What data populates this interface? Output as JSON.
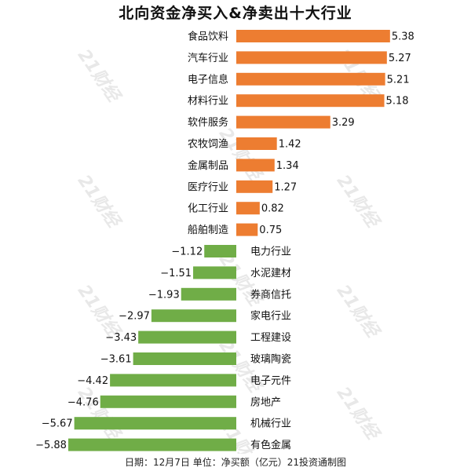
{
  "title": "北向资金净买入&净卖出十大行业",
  "footer": "日期：12月7日 单位：净买额（亿元）21投资通制图",
  "watermark": "21财经",
  "colors": {
    "buy": "#ed7d31",
    "sell": "#70ad47"
  },
  "chart_data": {
    "type": "bar",
    "orientation": "horizontal",
    "title": "北向资金净买入&净卖出十大行业",
    "xlabel": "",
    "ylabel": "",
    "xlim": [
      -5.88,
      5.38
    ],
    "grid": false,
    "legend": "none",
    "categories": [
      "食品饮料",
      "汽车行业",
      "电子信息",
      "材料行业",
      "软件服务",
      "农牧饲渔",
      "金属制品",
      "医疗行业",
      "化工行业",
      "船舶制造",
      "电力行业",
      "水泥建材",
      "券商信托",
      "家电行业",
      "工程建设",
      "玻璃陶瓷",
      "电子元件",
      "房地产",
      "机械行业",
      "有色金属"
    ],
    "values": [
      5.38,
      5.27,
      5.21,
      5.18,
      3.29,
      1.42,
      1.34,
      1.27,
      0.82,
      0.75,
      -1.12,
      -1.51,
      -1.93,
      -2.97,
      -3.43,
      -3.61,
      -4.42,
      -4.76,
      -5.67,
      -5.88
    ],
    "value_labels": [
      "5.38",
      "5.27",
      "5.21",
      "5.18",
      "3.29",
      "1.42",
      "1.34",
      "1.27",
      "0.82",
      "0.75",
      "−1.12",
      "−1.51",
      "−1.93",
      "−2.97",
      "−3.43",
      "−3.61",
      "−4.42",
      "−4.76",
      "−5.67",
      "−5.88"
    ]
  }
}
